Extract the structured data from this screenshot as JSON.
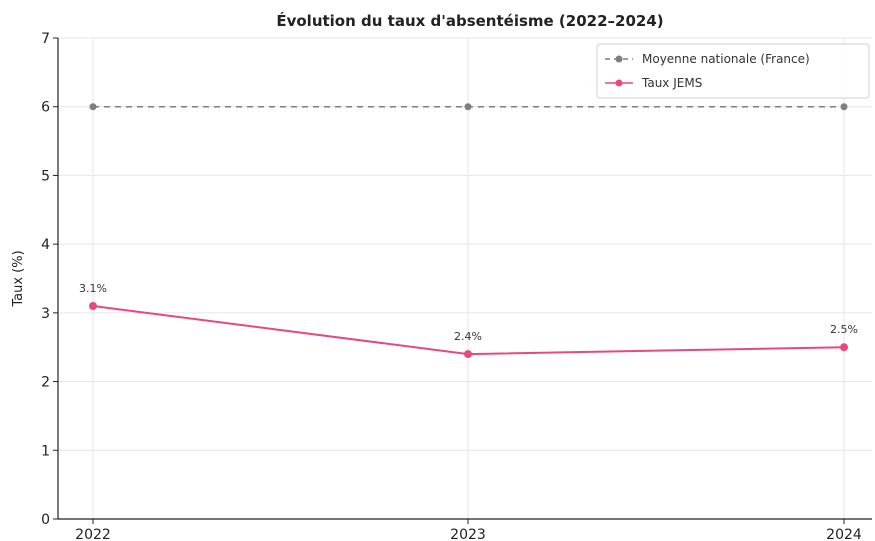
{
  "chart_data": {
    "type": "line",
    "title": "Évolution du taux d'absentéisme (2022–2024)",
    "xlabel": "",
    "ylabel": "Taux (%)",
    "categories": [
      "2022",
      "2023",
      "2024"
    ],
    "ylim": [
      0,
      7
    ],
    "yticks": [
      "0",
      "1",
      "2",
      "3",
      "4",
      "5",
      "6",
      "7"
    ],
    "grid": true,
    "legend_position": "top-right",
    "series": [
      {
        "name": "Moyenne nationale (France)",
        "values": [
          6,
          6,
          6
        ],
        "color": "#7f7f7f",
        "style": "dashed",
        "labels": []
      },
      {
        "name": "Taux JEMS",
        "values": [
          3.1,
          2.4,
          2.5
        ],
        "color": "#e8487f",
        "style": "solid",
        "labels": [
          "3.1%",
          "2.4%",
          "2.5%"
        ]
      }
    ]
  }
}
